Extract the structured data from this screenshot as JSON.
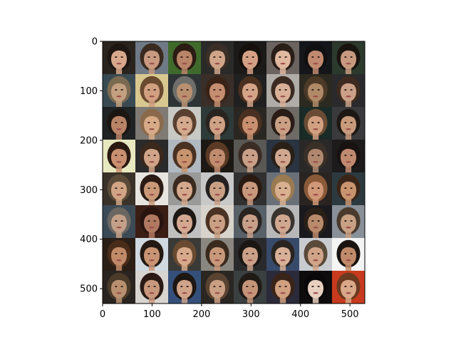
{
  "figure": {
    "x_ticks": [
      "0",
      "100",
      "200",
      "300",
      "400",
      "500"
    ],
    "y_ticks": [
      "0",
      "100",
      "200",
      "300",
      "400",
      "500"
    ],
    "x_tick_values": [
      0,
      100,
      200,
      300,
      400,
      500
    ],
    "y_tick_values": [
      0,
      100,
      200,
      300,
      400,
      500
    ],
    "x_range": [
      0,
      530
    ],
    "y_range": [
      0,
      530
    ],
    "grid": {
      "rows": 8,
      "cols": 8
    },
    "content": "8x8 grid of generated face images",
    "cells": [
      {
        "bg": "#2a241f",
        "skin": "#d8a88c",
        "hair": "#1e1612"
      },
      {
        "bg": "#6f7a86",
        "skin": "#c89a80",
        "hair": "#3a2a20"
      },
      {
        "bg": "#3f6a2c",
        "skin": "#b98468",
        "hair": "#2b1c14"
      },
      {
        "bg": "#2a2a28",
        "skin": "#cfa489",
        "hair": "#3b2e26"
      },
      {
        "bg": "#1c1a18",
        "skin": "#d4a085",
        "hair": "#15100c"
      },
      {
        "bg": "#6b6460",
        "skin": "#e0b8a0",
        "hair": "#2a1e18"
      },
      {
        "bg": "#15161a",
        "skin": "#c08a70",
        "hair": "#101010"
      },
      {
        "bg": "#2c3a2e",
        "skin": "#c79a80",
        "hair": "#1a1410"
      },
      {
        "bg": "#3a4a52",
        "skin": "#c3a080",
        "hair": "#7a6a50"
      },
      {
        "bg": "#d8c890",
        "skin": "#d0a080",
        "hair": "#6a4a30"
      },
      {
        "bg": "#2e3436",
        "skin": "#b89070",
        "hair": "#6e6e6a"
      },
      {
        "bg": "#3a2e28",
        "skin": "#c48e70",
        "hair": "#3a2418"
      },
      {
        "bg": "#202020",
        "skin": "#d4a488",
        "hair": "#4a3020"
      },
      {
        "bg": "#b0aca8",
        "skin": "#d8b098",
        "hair": "#3a2a22"
      },
      {
        "bg": "#2c2a20",
        "skin": "#b08a68",
        "hair": "#4c3a26"
      },
      {
        "bg": "#2a2a2c",
        "skin": "#caa088",
        "hair": "#3e2a1e"
      },
      {
        "bg": "#1f2324",
        "skin": "#b88468",
        "hair": "#1c1612"
      },
      {
        "bg": "#807a74",
        "skin": "#d8aa88",
        "hair": "#8a6a4a"
      },
      {
        "bg": "#c8c8c4",
        "skin": "#d4aa8e",
        "hair": "#5a4030"
      },
      {
        "bg": "#2e3a38",
        "skin": "#cfa286",
        "hair": "#2a2420"
      },
      {
        "bg": "#2a2622",
        "skin": "#c89070",
        "hair": "#4a3020"
      },
      {
        "bg": "#6e6a66",
        "skin": "#caa084",
        "hair": "#2a1c16"
      },
      {
        "bg": "#1a2a26",
        "skin": "#d0a080",
        "hair": "#6a4c34"
      },
      {
        "bg": "#3a3a3c",
        "skin": "#c89a7c",
        "hair": "#1e1814"
      },
      {
        "bg": "#e8e8c0",
        "skin": "#c89070",
        "hair": "#2a1a12"
      },
      {
        "bg": "#2a2a2a",
        "skin": "#d0a488",
        "hair": "#3a281c"
      },
      {
        "bg": "#b0b8c0",
        "skin": "#c8946e",
        "hair": "#4a3222"
      },
      {
        "bg": "#1c1814",
        "skin": "#c08c70",
        "hair": "#5a3a24"
      },
      {
        "bg": "#5a5854",
        "skin": "#c8a088",
        "hair": "#3a2c24"
      },
      {
        "bg": "#2a3440",
        "skin": "#d0a890",
        "hair": "#2a2018"
      },
      {
        "bg": "#2a2828",
        "skin": "#b08870",
        "hair": "#3a3028"
      },
      {
        "bg": "#1c1a1a",
        "skin": "#c08a70",
        "hair": "#181210"
      },
      {
        "bg": "#3a3228",
        "skin": "#d0a484",
        "hair": "#5a4a38"
      },
      {
        "bg": "#e8e4e0",
        "skin": "#c89878",
        "hair": "#2a1c14"
      },
      {
        "bg": "#9a9a98",
        "skin": "#d4a88c",
        "hair": "#3a2a20"
      },
      {
        "bg": "#c8c8c8",
        "skin": "#caa084",
        "hair": "#242020"
      },
      {
        "bg": "#303030",
        "skin": "#c8987c",
        "hair": "#2a1a12"
      },
      {
        "bg": "#6a7078",
        "skin": "#d8b090",
        "hair": "#9a7a50"
      },
      {
        "bg": "#2a2420",
        "skin": "#d09878",
        "hair": "#8a5a38"
      },
      {
        "bg": "#2c3a40",
        "skin": "#c89470",
        "hair": "#3a2618"
      },
      {
        "bg": "#3c4a56",
        "skin": "#c4a088",
        "hair": "#6a6660"
      },
      {
        "bg": "#3a1e16",
        "skin": "#b07860",
        "hair": "#2a1410"
      },
      {
        "bg": "#c0c0c0",
        "skin": "#d4a890",
        "hair": "#1e1814"
      },
      {
        "bg": "#d8d4cc",
        "skin": "#caa084",
        "hair": "#4a3224"
      },
      {
        "bg": "#586068",
        "skin": "#c8a08a",
        "hair": "#2a2420"
      },
      {
        "bg": "#b8b8b8",
        "skin": "#d0a890",
        "hair": "#3a3430"
      },
      {
        "bg": "#1a1a1e",
        "skin": "#b88a6c",
        "hair": "#2a2018"
      },
      {
        "bg": "#8a9098",
        "skin": "#c8a084",
        "hair": "#4a3a2e"
      },
      {
        "bg": "#2a1e16",
        "skin": "#c08a68",
        "hair": "#4a2c1a"
      },
      {
        "bg": "#d0d8e0",
        "skin": "#c89474",
        "hair": "#241a14"
      },
      {
        "bg": "#3a3a38",
        "skin": "#d8aa8c",
        "hair": "#6a4a30"
      },
      {
        "bg": "#8a8680",
        "skin": "#c8987a",
        "hair": "#3a2a1e"
      },
      {
        "bg": "#2a2a2c",
        "skin": "#caa088",
        "hair": "#1a1614"
      },
      {
        "bg": "#384a6a",
        "skin": "#d8b098",
        "hair": "#2a2420"
      },
      {
        "bg": "#c8ccd0",
        "skin": "#d0a488",
        "hair": "#5a4a3a"
      },
      {
        "bg": "#f4f4f4",
        "skin": "#c08a6a",
        "hair": "#1a1410"
      },
      {
        "bg": "#2a2420",
        "skin": "#b89070",
        "hair": "#4a3a28"
      },
      {
        "bg": "#d8d4d0",
        "skin": "#c8987c",
        "hair": "#2a1a14"
      },
      {
        "bg": "#34507a",
        "skin": "#d0a48a",
        "hair": "#1e1612"
      },
      {
        "bg": "#2a2622",
        "skin": "#caa084",
        "hair": "#5a4230"
      },
      {
        "bg": "#3a4040",
        "skin": "#c49478",
        "hair": "#201a16"
      },
      {
        "bg": "#2a2a3a",
        "skin": "#d0a080",
        "hair": "#3a2418"
      },
      {
        "bg": "#0e0c0c",
        "skin": "#e8d0c0",
        "hair": "#0a0808"
      },
      {
        "bg": "#c83a1e",
        "skin": "#d8a888",
        "hair": "#6a3a20"
      }
    ]
  }
}
